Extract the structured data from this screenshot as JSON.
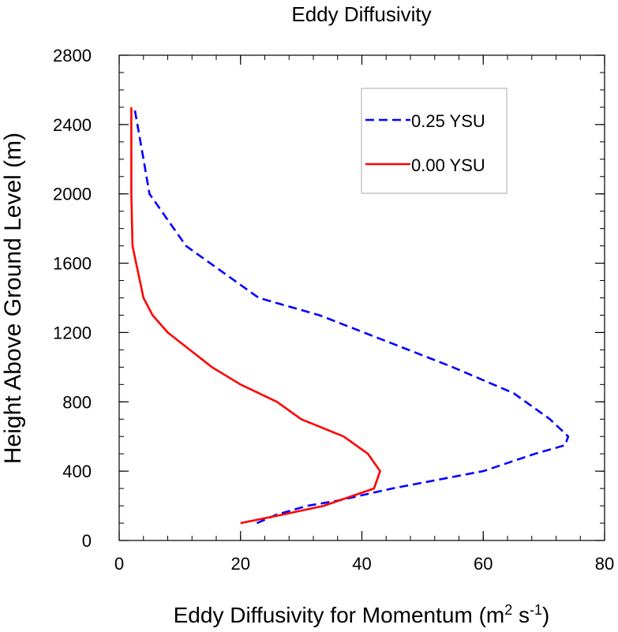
{
  "chart_data": {
    "type": "line",
    "title": "Eddy Diffusivity",
    "xlabel": "Eddy Diffusivity for Momentum (m",
    "xlabel_sup1": "2",
    "xlabel_mid": " s",
    "xlabel_sup2": "-1",
    "xlabel_end": ")",
    "ylabel": "Height Above Ground Level (m)",
    "xlim": [
      0,
      80
    ],
    "ylim": [
      0,
      2800
    ],
    "xticks": [
      0,
      20,
      40,
      60,
      80
    ],
    "yticks": [
      0,
      400,
      800,
      1200,
      1600,
      2000,
      2400,
      2800
    ],
    "grid": false,
    "legend_position": "top-right",
    "series": [
      {
        "name": "0.25 YSU",
        "color": "#0000ff",
        "style": "dashed",
        "x": [
          22.7,
          26,
          31,
          36,
          45,
          60,
          68.5,
          73.5,
          74,
          71,
          65,
          55,
          44,
          33,
          23,
          17,
          11,
          8,
          5,
          4,
          3,
          2.5
        ],
        "y": [
          100,
          150,
          200,
          230,
          300,
          400,
          500,
          550,
          600,
          700,
          850,
          1000,
          1150,
          1300,
          1400,
          1550,
          1700,
          1850,
          2000,
          2200,
          2400,
          2500
        ]
      },
      {
        "name": "0.00 YSU",
        "color": "#ff0000",
        "style": "solid",
        "x": [
          20,
          27,
          33.7,
          42,
          43,
          41,
          37,
          30,
          26,
          20,
          15.3,
          8,
          5.5,
          4,
          2.8,
          2.2,
          2,
          2,
          2
        ],
        "y": [
          100,
          150,
          200,
          300,
          400,
          500,
          600,
          700,
          800,
          900,
          1000,
          1200,
          1300,
          1400,
          1600,
          1700,
          2000,
          2300,
          2500
        ]
      }
    ]
  }
}
